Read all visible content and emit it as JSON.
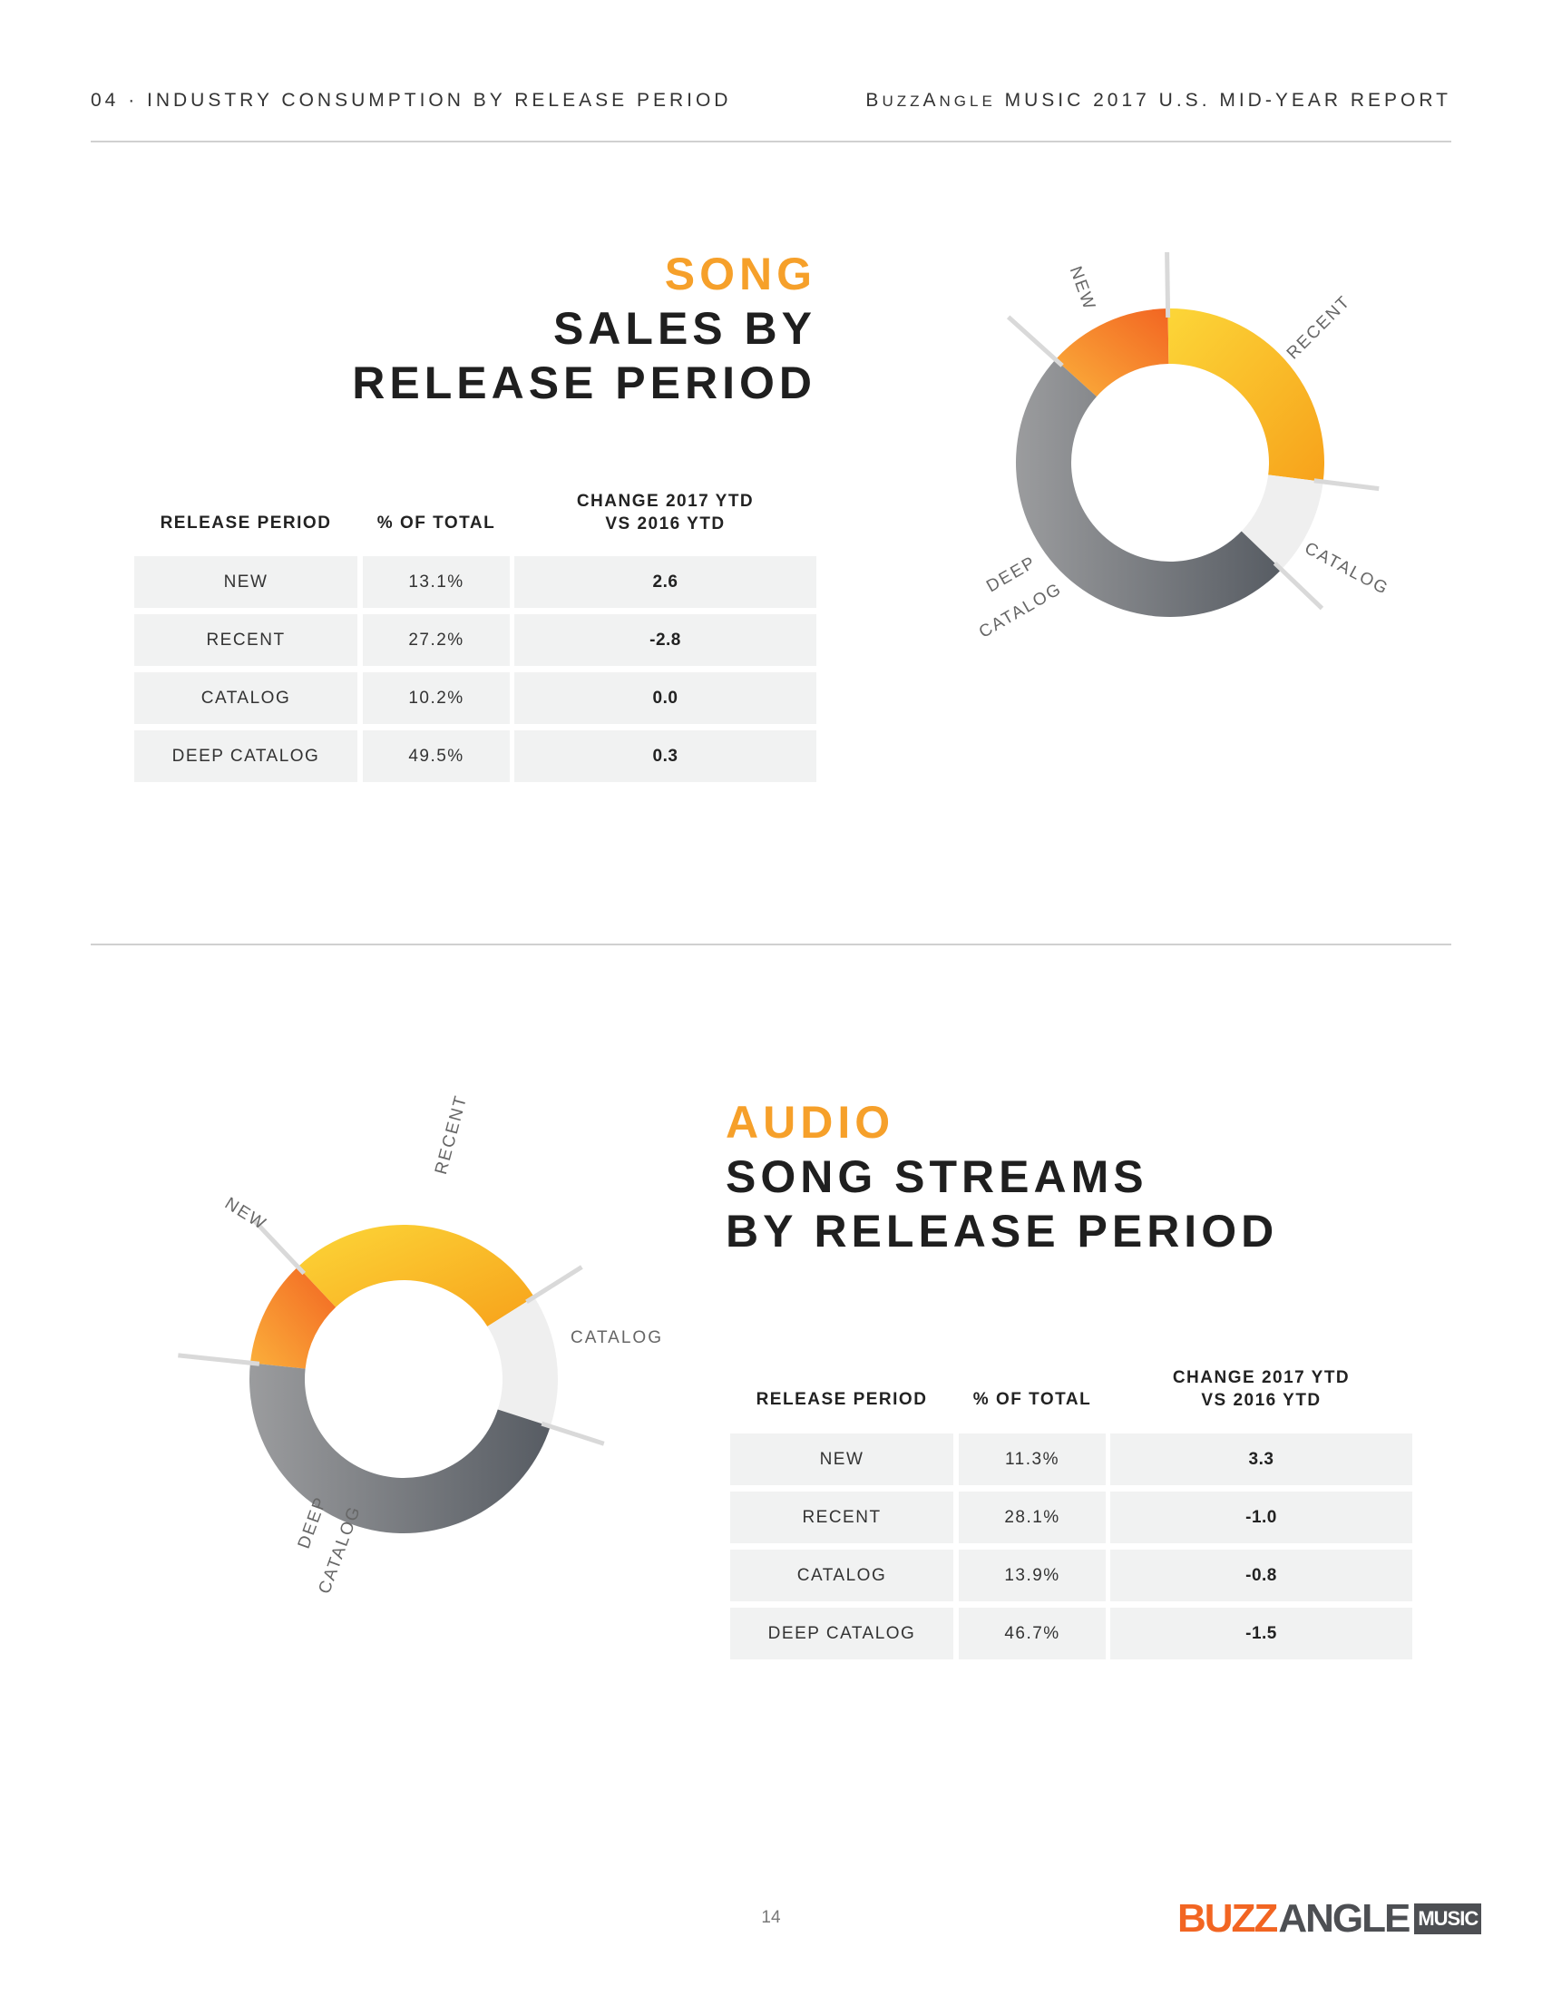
{
  "header": {
    "left": "04 · INDUSTRY CONSUMPTION BY RELEASE PERIOD",
    "right_brand_b": "B",
    "right_brand_uzz": "UZZ",
    "right_brand_a": "A",
    "right_brand_ngle": "NGLE",
    "right_rest": " MUSIC 2017 U.S. MID-YEAR REPORT"
  },
  "colors": {
    "new": "#f7931e",
    "recent": "#fbb52a",
    "catalog": "#eeeeee",
    "deep_catalog": "#7f8184",
    "accent": "#f6a02a",
    "table_bg": "#f1f2f2"
  },
  "section1": {
    "title_accent": "SONG",
    "title_line1": "SALES BY",
    "title_line2": "RELEASE PERIOD",
    "table_headers": [
      "RELEASE PERIOD",
      "% OF TOTAL",
      "CHANGE 2017 YTD",
      "VS 2016 YTD"
    ],
    "rows": [
      [
        "NEW",
        "13.1%",
        "2.6"
      ],
      [
        "RECENT",
        "27.2%",
        "-2.8"
      ],
      [
        "CATALOG",
        "10.2%",
        "0.0"
      ],
      [
        "DEEP CATALOG",
        "49.5%",
        "0.3"
      ]
    ],
    "labels": {
      "new": "NEW",
      "recent": "RECENT",
      "catalog": "CATALOG",
      "deep1": "DEEP",
      "deep2": "CATALOG"
    }
  },
  "section2": {
    "title_accent": "AUDIO",
    "title_line1": "SONG STREAMS",
    "title_line2": "BY RELEASE PERIOD",
    "table_headers": [
      "RELEASE PERIOD",
      "% OF TOTAL",
      "CHANGE 2017 YTD",
      "VS 2016 YTD"
    ],
    "rows": [
      [
        "NEW",
        "11.3%",
        "3.3"
      ],
      [
        "RECENT",
        "28.1%",
        "-1.0"
      ],
      [
        "CATALOG",
        "13.9%",
        "-0.8"
      ],
      [
        "DEEP CATALOG",
        "46.7%",
        "-1.5"
      ]
    ],
    "labels": {
      "new": "NEW",
      "recent": "RECENT",
      "catalog": "CATALOG",
      "deep1": "DEEP",
      "deep2": "CATALOG"
    }
  },
  "chart_data": [
    {
      "type": "pie",
      "title": "SONG SALES BY RELEASE PERIOD",
      "categories": [
        "NEW",
        "RECENT",
        "CATALOG",
        "DEEP CATALOG"
      ],
      "values": [
        13.1,
        27.2,
        10.2,
        49.5
      ],
      "change_2017_vs_2016": [
        2.6,
        -2.8,
        0.0,
        0.3
      ],
      "donut": true,
      "start_angle_deg": 312
    },
    {
      "type": "pie",
      "title": "AUDIO SONG STREAMS BY RELEASE PERIOD",
      "categories": [
        "NEW",
        "RECENT",
        "CATALOG",
        "DEEP CATALOG"
      ],
      "values": [
        11.3,
        28.1,
        13.9,
        46.7
      ],
      "change_2017_vs_2016": [
        3.3,
        -1.0,
        -0.8,
        -1.5
      ],
      "donut": true,
      "start_angle_deg": 276
    }
  ],
  "footer": {
    "page": "14",
    "logo_buzz": "BUZZ",
    "logo_angle": "ANGLE",
    "logo_music": "MUSIC"
  }
}
